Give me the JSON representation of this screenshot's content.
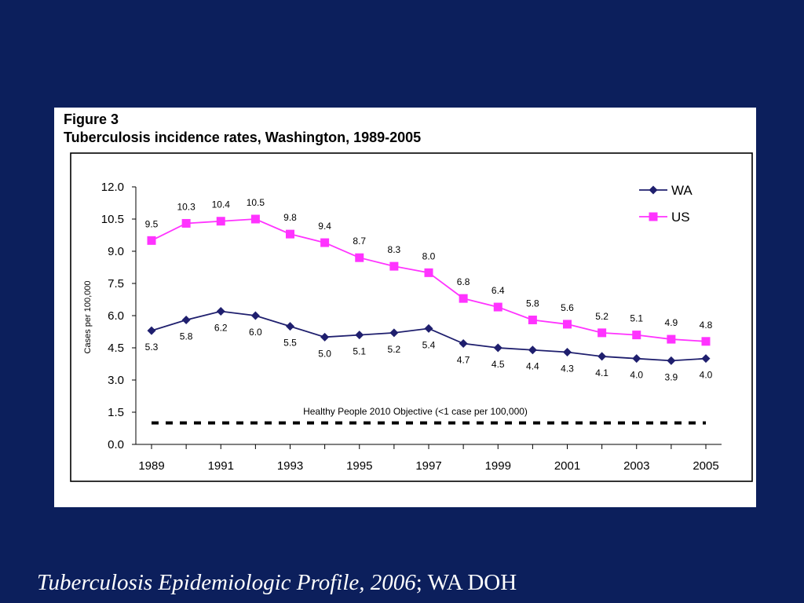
{
  "caption": {
    "source_title": "Tuberculosis Epidemiologic Profile, 2006",
    "separator": ";",
    "publisher": "WA DOH"
  },
  "chart_data": {
    "type": "line",
    "figure_label": "Figure 3",
    "title": "Tuberculosis incidence rates, Washington, 1989-2005",
    "xlabel": "",
    "ylabel": "Cases per 100,000",
    "x": [
      1989,
      1990,
      1991,
      1992,
      1993,
      1994,
      1995,
      1996,
      1997,
      1998,
      1999,
      2000,
      2001,
      2002,
      2003,
      2004,
      2005
    ],
    "x_tick_labels": [
      "1989",
      "1991",
      "1993",
      "1995",
      "1997",
      "1999",
      "2001",
      "2003",
      "2005"
    ],
    "y_tick_labels": [
      "0.0",
      "1.5",
      "3.0",
      "4.5",
      "6.0",
      "7.5",
      "9.0",
      "10.5",
      "12.0"
    ],
    "xlim": [
      1989,
      2005
    ],
    "ylim": [
      0,
      12
    ],
    "grid": false,
    "legend": "top-right",
    "series": [
      {
        "name": "WA",
        "color": "#1f1f6e",
        "marker": "diamond",
        "values": [
          5.3,
          5.8,
          6.2,
          6.0,
          5.5,
          5.0,
          5.1,
          5.2,
          5.4,
          4.7,
          4.5,
          4.4,
          4.3,
          4.1,
          4.0,
          3.9,
          4.0
        ],
        "labels": [
          "5.3",
          "5.8",
          "6.2",
          "6.0",
          "5.5",
          "5.0",
          "5.1",
          "5.2",
          "5.4",
          "4.7",
          "4.5",
          "4.4",
          "4.3",
          "4.1",
          "4.0",
          "3.9",
          "4.0"
        ]
      },
      {
        "name": "US",
        "color": "#ff33ff",
        "marker": "square",
        "values": [
          9.5,
          10.3,
          10.4,
          10.5,
          9.8,
          9.4,
          8.7,
          8.3,
          8.0,
          6.8,
          6.4,
          5.8,
          5.6,
          5.2,
          5.1,
          4.9,
          4.8
        ],
        "labels": [
          "9.5",
          "10.3",
          "10.4",
          "10.5",
          "9.8",
          "9.4",
          "8.7",
          "8.3",
          "8.0",
          "6.8",
          "6.4",
          "5.8",
          "5.6",
          "5.2",
          "5.1",
          "4.9",
          "4.8"
        ]
      }
    ],
    "reference_line": {
      "value": 1.0,
      "style": "dashed",
      "label": "Healthy People 2010 Objective (<1 case per 100,000)"
    }
  }
}
